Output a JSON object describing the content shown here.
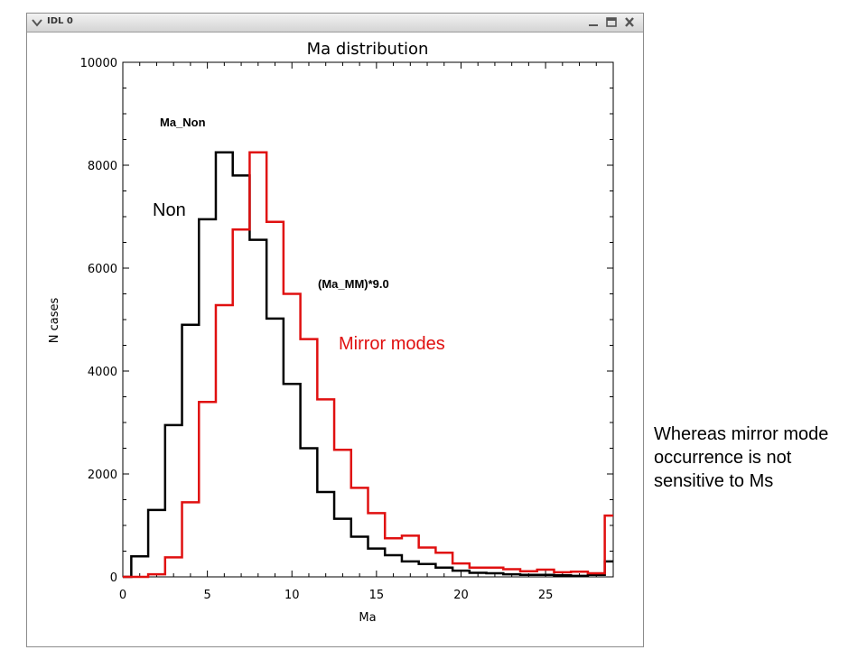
{
  "window": {
    "title": "IDL 0",
    "icons": {
      "menu": "chevron-down-icon",
      "minimize": "minimize-icon",
      "maximize": "maximize-icon",
      "close": "close-icon"
    }
  },
  "chart_data": {
    "type": "line",
    "style": "step-histogram",
    "title": "Ma distribution",
    "xlabel": "Ma",
    "ylabel": "N cases",
    "xlim": [
      0,
      29
    ],
    "ylim": [
      0,
      10000
    ],
    "xticks": [
      "0",
      "5",
      "10",
      "15",
      "20",
      "25"
    ],
    "yticks": [
      "0",
      "2000",
      "4000",
      "6000",
      "8000",
      "10000"
    ],
    "bin_edges": [
      0,
      0.5,
      1.5,
      2.5,
      3.5,
      4.5,
      5.5,
      6.5,
      7.5,
      8.5,
      9.5,
      10.5,
      11.5,
      12.5,
      13.5,
      14.5,
      15.5,
      16.5,
      17.5,
      18.5,
      19.5,
      20.5,
      21.5,
      22.5,
      23.5,
      24.5,
      25.5,
      26.5,
      27.5,
      28.5,
      29
    ],
    "series": [
      {
        "label": "Ma_Non",
        "color": "#000000",
        "values": [
          0,
          400,
          1300,
          2950,
          4900,
          6950,
          8250,
          7800,
          6550,
          5020,
          3750,
          2500,
          1650,
          1130,
          780,
          550,
          420,
          300,
          250,
          180,
          120,
          80,
          70,
          50,
          40,
          40,
          30,
          20,
          40,
          300
        ]
      },
      {
        "label": "(Ma_MM)*9.0",
        "color": "#e01010",
        "values": [
          0,
          0,
          50,
          380,
          1450,
          3400,
          5280,
          6750,
          8250,
          6900,
          5500,
          4620,
          3450,
          2470,
          1730,
          1240,
          750,
          800,
          570,
          470,
          260,
          180,
          180,
          150,
          110,
          140,
          90,
          100,
          70,
          1190
        ]
      }
    ],
    "annotations": {
      "non": "Non",
      "mirror_modes": "Mirror modes"
    },
    "grid": false
  },
  "side_note": "Whereas mirror mode occurrence is not sensitive to Ms"
}
